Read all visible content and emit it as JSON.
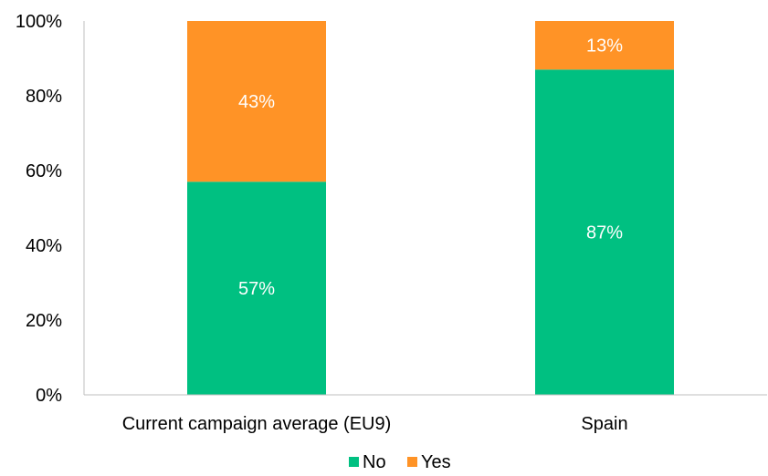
{
  "chart_data": {
    "type": "bar",
    "stacked": true,
    "categories": [
      "Current campaign average (EU9)",
      "Spain"
    ],
    "series": [
      {
        "name": "No",
        "values": [
          57,
          87
        ],
        "labels": [
          "57%",
          "87%"
        ],
        "color": "#00c081"
      },
      {
        "name": "Yes",
        "values": [
          43,
          13
        ],
        "labels": [
          "43%",
          "13%"
        ],
        "color": "#ff9326"
      }
    ],
    "ylim": [
      0,
      100
    ],
    "y_ticks": [
      0,
      20,
      40,
      60,
      80,
      100
    ],
    "y_tick_labels": [
      "0%",
      "20%",
      "40%",
      "60%",
      "80%",
      "100%"
    ],
    "grid": false,
    "legend_position": "bottom",
    "axis_color": "#bfbfbf",
    "label_color": "#ffffff",
    "text_color": "#000000"
  }
}
